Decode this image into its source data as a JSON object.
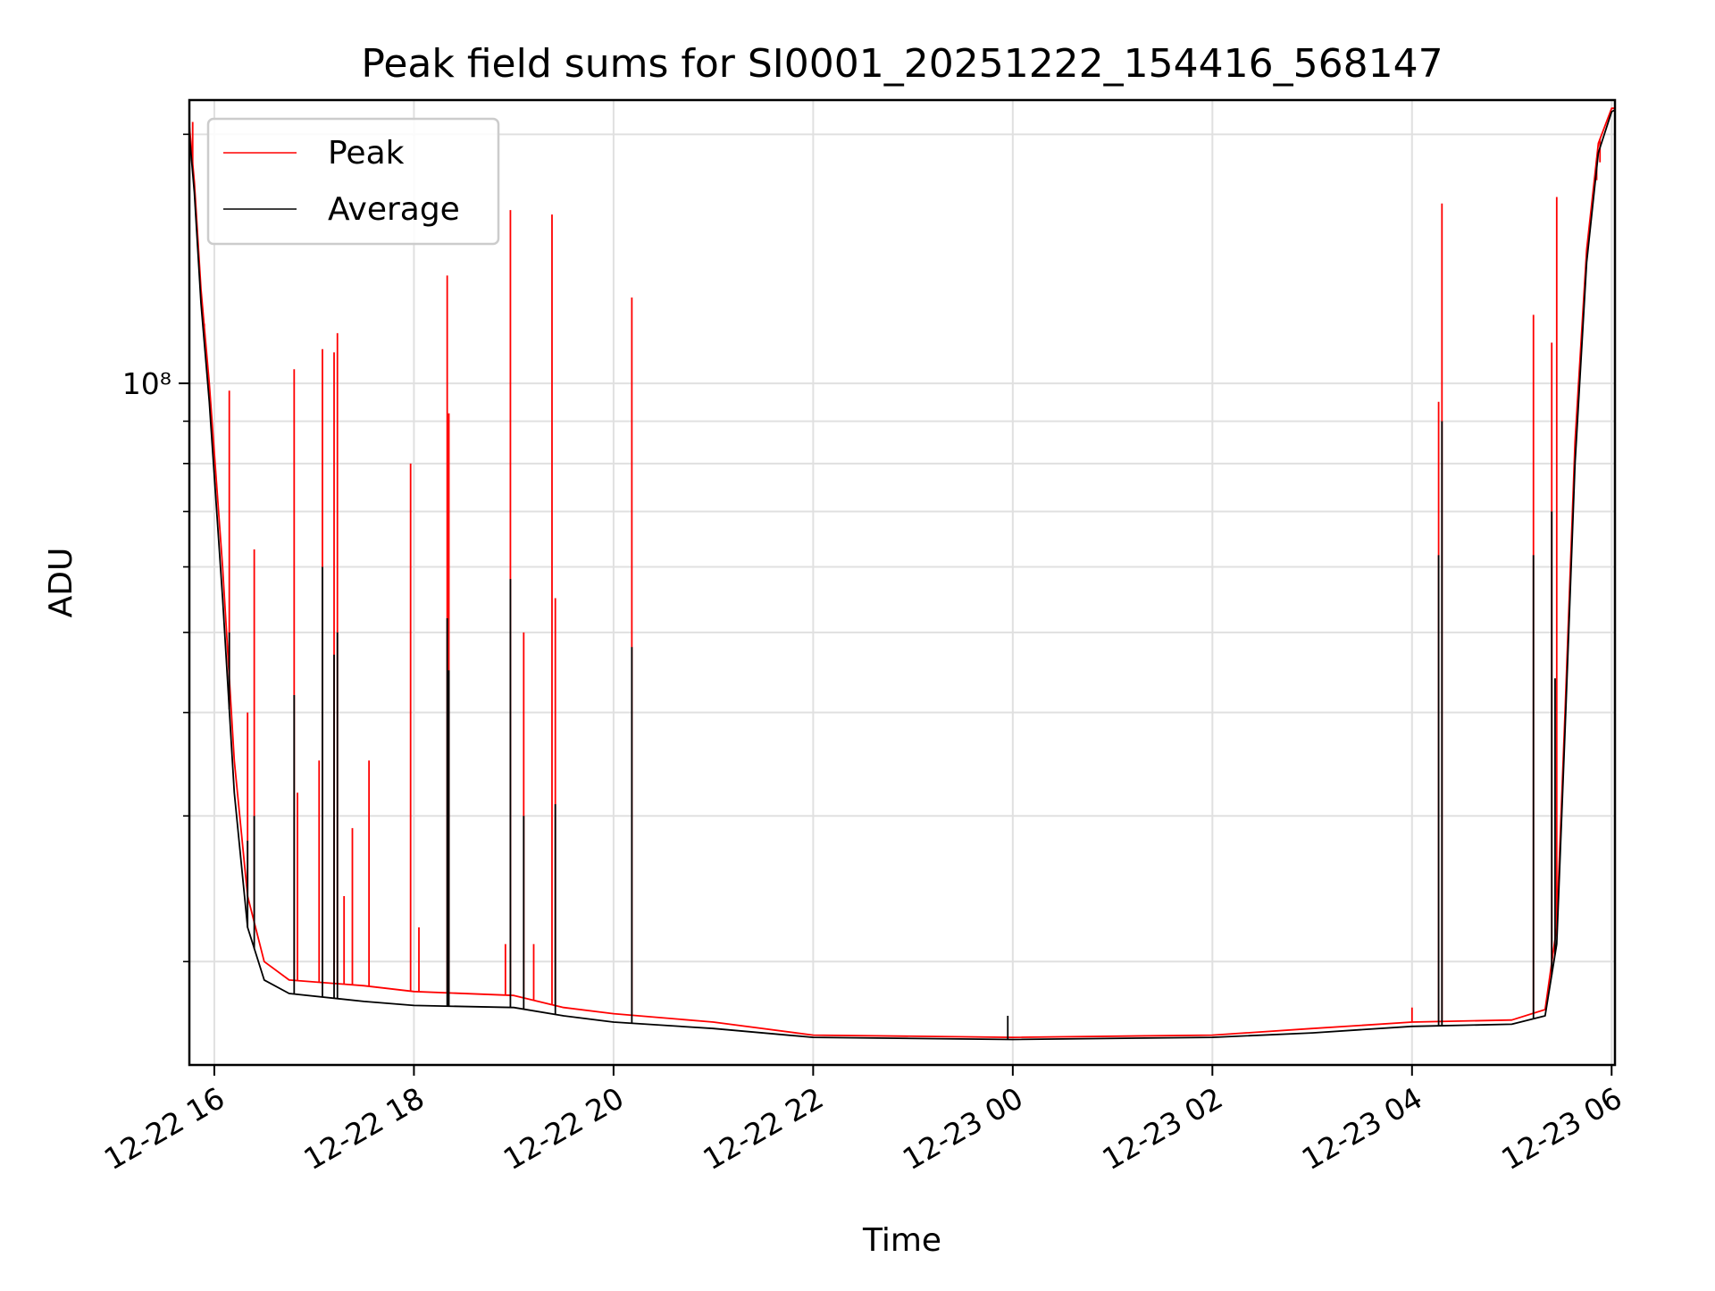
{
  "chart_data": {
    "type": "line",
    "title": "Peak field sums for SI0001_20251222_154416_568147",
    "xlabel": "Time",
    "ylabel": "ADU",
    "yscale": "log",
    "ylim": [
      15000000,
      220000000
    ],
    "xlim": [
      "2025-12-22T15:45",
      "2025-12-23T06:02"
    ],
    "x_ticks": [
      "2025-12-22T16:00",
      "2025-12-22T18:00",
      "2025-12-22T20:00",
      "2025-12-22T22:00",
      "2025-12-23T00:00",
      "2025-12-23T02:00",
      "2025-12-23T04:00",
      "2025-12-23T06:00"
    ],
    "x_tick_labels": [
      "12-22 16",
      "12-22 18",
      "12-22 20",
      "12-22 22",
      "12-23 00",
      "12-23 02",
      "12-23 04",
      "12-23 06"
    ],
    "y_major_ticks": [
      100000000
    ],
    "y_major_tick_labels": [
      "10⁸"
    ],
    "y_minor_ticks": [
      20000000,
      30000000,
      40000000,
      50000000,
      60000000,
      70000000,
      80000000,
      90000000,
      200000000
    ],
    "grid": true,
    "legend": "upper-left",
    "colors": {
      "Peak": "#ff0000",
      "Average": "#000000"
    },
    "series": [
      {
        "name": "Peak",
        "baseline": [
          [
            "2025-12-22T15:45",
            205000000
          ],
          [
            "2025-12-22T15:48",
            175000000
          ],
          [
            "2025-12-22T15:52",
            130000000
          ],
          [
            "2025-12-22T15:57",
            100000000
          ],
          [
            "2025-12-22T16:05",
            60000000
          ],
          [
            "2025-12-22T16:12",
            35000000
          ],
          [
            "2025-12-22T16:20",
            24000000
          ],
          [
            "2025-12-22T16:30",
            20000000
          ],
          [
            "2025-12-22T16:45",
            19000000
          ],
          [
            "2025-12-22T17:30",
            18700000
          ],
          [
            "2025-12-22T18:00",
            18400000
          ],
          [
            "2025-12-22T19:00",
            18200000
          ],
          [
            "2025-12-22T19:30",
            17600000
          ],
          [
            "2025-12-22T20:00",
            17300000
          ],
          [
            "2025-12-22T21:00",
            16900000
          ],
          [
            "2025-12-22T22:00",
            16300000
          ],
          [
            "2025-12-23T00:00",
            16200000
          ],
          [
            "2025-12-23T02:00",
            16300000
          ],
          [
            "2025-12-23T03:00",
            16600000
          ],
          [
            "2025-12-23T04:00",
            16900000
          ],
          [
            "2025-12-23T05:00",
            17000000
          ],
          [
            "2025-12-23T05:20",
            17500000
          ],
          [
            "2025-12-23T05:27",
            22000000
          ],
          [
            "2025-12-23T05:32",
            40000000
          ],
          [
            "2025-12-23T05:38",
            85000000
          ],
          [
            "2025-12-23T05:45",
            145000000
          ],
          [
            "2025-12-23T05:52",
            195000000
          ],
          [
            "2025-12-23T06:00",
            215000000
          ],
          [
            "2025-12-23T06:02",
            215000000
          ]
        ],
        "spikes": [
          [
            "2025-12-22T15:47",
            207000000
          ],
          [
            "2025-12-22T15:54",
            118000000
          ],
          [
            "2025-12-22T16:09",
            98000000
          ],
          [
            "2025-12-22T16:20",
            40000000
          ],
          [
            "2025-12-22T16:24",
            63000000
          ],
          [
            "2025-12-22T16:48",
            104000000
          ],
          [
            "2025-12-22T16:50",
            32000000
          ],
          [
            "2025-12-22T17:03",
            35000000
          ],
          [
            "2025-12-22T17:05",
            110000000
          ],
          [
            "2025-12-22T17:12",
            109000000
          ],
          [
            "2025-12-22T17:14",
            115000000
          ],
          [
            "2025-12-22T17:18",
            24000000
          ],
          [
            "2025-12-22T17:23",
            29000000
          ],
          [
            "2025-12-22T17:33",
            35000000
          ],
          [
            "2025-12-22T17:58",
            80000000
          ],
          [
            "2025-12-22T18:03",
            22000000
          ],
          [
            "2025-12-22T18:20",
            135000000
          ],
          [
            "2025-12-22T18:21",
            92000000
          ],
          [
            "2025-12-22T18:55",
            21000000
          ],
          [
            "2025-12-22T18:58",
            162000000
          ],
          [
            "2025-12-22T19:06",
            50000000
          ],
          [
            "2025-12-22T19:12",
            21000000
          ],
          [
            "2025-12-22T19:23",
            160000000
          ],
          [
            "2025-12-22T19:25",
            55000000
          ],
          [
            "2025-12-22T20:11",
            127000000
          ],
          [
            "2025-12-23T04:00",
            17600000
          ],
          [
            "2025-12-23T04:16",
            95000000
          ],
          [
            "2025-12-23T04:18",
            165000000
          ],
          [
            "2025-12-23T05:13",
            121000000
          ],
          [
            "2025-12-23T05:24",
            112000000
          ],
          [
            "2025-12-23T05:27",
            168000000
          ],
          [
            "2025-12-23T05:49",
            172000000
          ],
          [
            "2025-12-23T05:51",
            176000000
          ],
          [
            "2025-12-23T05:53",
            185000000
          ]
        ]
      },
      {
        "name": "Average",
        "baseline": [
          [
            "2025-12-22T15:45",
            200000000
          ],
          [
            "2025-12-22T15:48",
            170000000
          ],
          [
            "2025-12-22T15:52",
            125000000
          ],
          [
            "2025-12-22T15:57",
            95000000
          ],
          [
            "2025-12-22T16:05",
            55000000
          ],
          [
            "2025-12-22T16:12",
            32000000
          ],
          [
            "2025-12-22T16:20",
            22000000
          ],
          [
            "2025-12-22T16:30",
            19000000
          ],
          [
            "2025-12-22T16:45",
            18300000
          ],
          [
            "2025-12-22T17:30",
            17900000
          ],
          [
            "2025-12-22T18:00",
            17700000
          ],
          [
            "2025-12-22T19:00",
            17600000
          ],
          [
            "2025-12-22T19:30",
            17200000
          ],
          [
            "2025-12-22T20:00",
            16900000
          ],
          [
            "2025-12-22T21:00",
            16600000
          ],
          [
            "2025-12-22T22:00",
            16200000
          ],
          [
            "2025-12-23T00:00",
            16100000
          ],
          [
            "2025-12-23T02:00",
            16200000
          ],
          [
            "2025-12-23T03:00",
            16400000
          ],
          [
            "2025-12-23T04:00",
            16700000
          ],
          [
            "2025-12-23T05:00",
            16800000
          ],
          [
            "2025-12-23T05:20",
            17200000
          ],
          [
            "2025-12-23T05:27",
            21000000
          ],
          [
            "2025-12-23T05:32",
            38000000
          ],
          [
            "2025-12-23T05:38",
            80000000
          ],
          [
            "2025-12-23T05:45",
            140000000
          ],
          [
            "2025-12-23T05:52",
            190000000
          ],
          [
            "2025-12-23T06:00",
            213000000
          ],
          [
            "2025-12-23T06:02",
            214000000
          ]
        ],
        "spikes": [
          [
            "2025-12-22T16:09",
            50000000
          ],
          [
            "2025-12-22T16:20",
            28000000
          ],
          [
            "2025-12-22T16:24",
            30000000
          ],
          [
            "2025-12-22T16:48",
            42000000
          ],
          [
            "2025-12-22T17:05",
            60000000
          ],
          [
            "2025-12-22T17:12",
            47000000
          ],
          [
            "2025-12-22T17:14",
            50000000
          ],
          [
            "2025-12-22T18:20",
            52000000
          ],
          [
            "2025-12-22T18:21",
            45000000
          ],
          [
            "2025-12-22T18:58",
            58000000
          ],
          [
            "2025-12-22T19:06",
            30000000
          ],
          [
            "2025-12-22T19:25",
            31000000
          ],
          [
            "2025-12-22T20:11",
            48000000
          ],
          [
            "2025-12-22T23:57",
            17200000
          ],
          [
            "2025-12-23T04:16",
            62000000
          ],
          [
            "2025-12-23T04:18",
            90000000
          ],
          [
            "2025-12-23T05:13",
            62000000
          ],
          [
            "2025-12-23T05:24",
            70000000
          ],
          [
            "2025-12-23T05:26",
            44000000
          ]
        ]
      }
    ]
  }
}
